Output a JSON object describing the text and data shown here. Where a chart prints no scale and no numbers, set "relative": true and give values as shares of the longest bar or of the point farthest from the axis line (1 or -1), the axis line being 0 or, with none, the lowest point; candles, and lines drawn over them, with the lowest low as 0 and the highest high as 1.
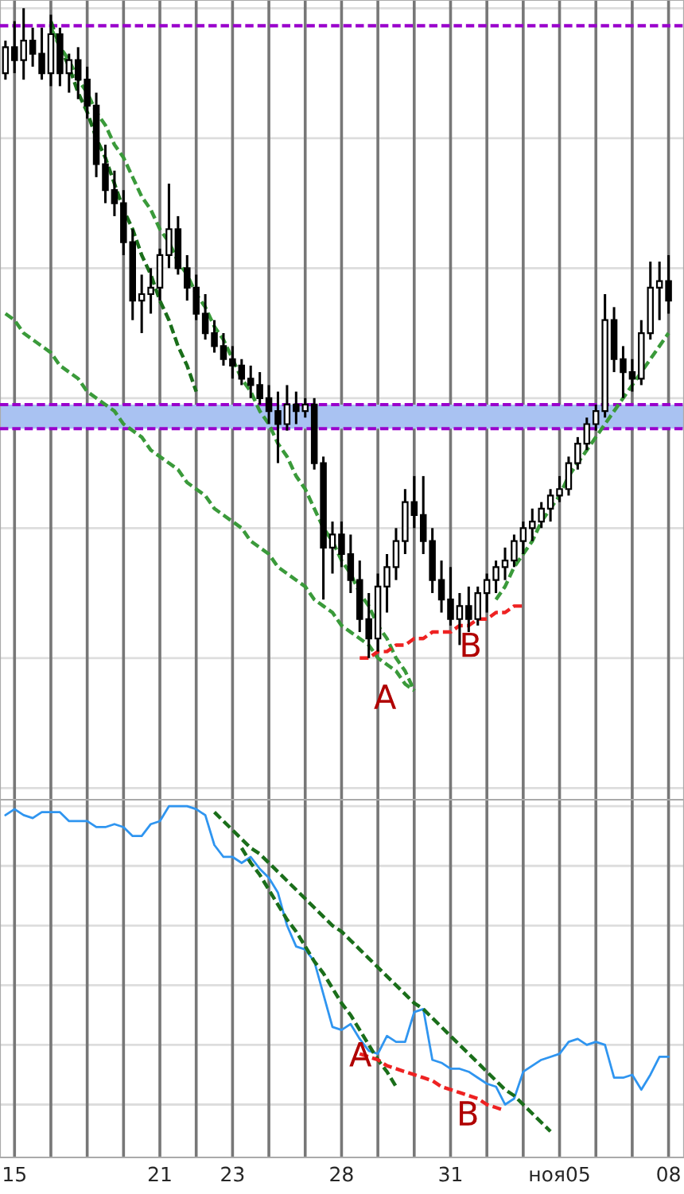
{
  "chart_data": [
    {
      "type": "candlestick",
      "relative": true,
      "color": "#000000",
      "categories": [
        null,
        null,
        null,
        null,
        null,
        null,
        null,
        null,
        null,
        null,
        null,
        null,
        null,
        null,
        null,
        null,
        null,
        null,
        null,
        null,
        null,
        null,
        null,
        null,
        null,
        null,
        null,
        null,
        null,
        null,
        null,
        null,
        null,
        null,
        null,
        null,
        null,
        null,
        null,
        null,
        null,
        null,
        null,
        null,
        null,
        null,
        null,
        null,
        null,
        null,
        null,
        null,
        null,
        null,
        null,
        null,
        null,
        null,
        null,
        null,
        null,
        null,
        null,
        null,
        null,
        null,
        null,
        null,
        null,
        null,
        null,
        null,
        null,
        null
      ],
      "ohlc": [
        [
          0.9,
          0.95,
          0.89,
          0.94
        ],
        [
          0.94,
          0.98,
          0.9,
          0.92
        ],
        [
          0.92,
          1.0,
          0.89,
          0.95
        ],
        [
          0.95,
          0.97,
          0.91,
          0.93
        ],
        [
          0.93,
          0.97,
          0.89,
          0.9
        ],
        [
          0.9,
          0.99,
          0.88,
          0.96
        ],
        [
          0.96,
          0.97,
          0.88,
          0.9
        ],
        [
          0.9,
          0.93,
          0.87,
          0.92
        ],
        [
          0.92,
          0.94,
          0.86,
          0.89
        ],
        [
          0.89,
          0.91,
          0.83,
          0.85
        ],
        [
          0.85,
          0.87,
          0.74,
          0.76
        ],
        [
          0.76,
          0.79,
          0.7,
          0.72
        ],
        [
          0.72,
          0.75,
          0.68,
          0.7
        ],
        [
          0.7,
          0.72,
          0.62,
          0.64
        ],
        [
          0.64,
          0.66,
          0.52,
          0.55
        ],
        [
          0.55,
          0.59,
          0.5,
          0.56
        ],
        [
          0.56,
          0.6,
          0.53,
          0.57
        ],
        [
          0.57,
          0.63,
          0.55,
          0.62
        ],
        [
          0.62,
          0.73,
          0.6,
          0.66
        ],
        [
          0.66,
          0.68,
          0.59,
          0.6
        ],
        [
          0.6,
          0.62,
          0.55,
          0.57
        ],
        [
          0.57,
          0.59,
          0.52,
          0.53
        ],
        [
          0.53,
          0.56,
          0.49,
          0.5
        ],
        [
          0.5,
          0.52,
          0.47,
          0.48
        ],
        [
          0.48,
          0.5,
          0.45,
          0.46
        ],
        [
          0.46,
          0.48,
          0.43,
          0.45
        ],
        [
          0.45,
          0.46,
          0.42,
          0.43
        ],
        [
          0.43,
          0.45,
          0.4,
          0.42
        ],
        [
          0.42,
          0.44,
          0.39,
          0.4
        ],
        [
          0.4,
          0.42,
          0.36,
          0.38
        ],
        [
          0.38,
          0.41,
          0.3,
          0.36
        ],
        [
          0.36,
          0.42,
          0.35,
          0.39
        ],
        [
          0.39,
          0.41,
          0.36,
          0.38
        ],
        [
          0.38,
          0.4,
          0.37,
          0.39
        ],
        [
          0.39,
          0.4,
          0.29,
          0.3
        ],
        [
          0.3,
          0.31,
          0.09,
          0.17
        ],
        [
          0.17,
          0.21,
          0.13,
          0.19
        ],
        [
          0.19,
          0.21,
          0.14,
          0.16
        ],
        [
          0.16,
          0.19,
          0.1,
          0.12
        ],
        [
          0.12,
          0.15,
          0.04,
          0.06
        ],
        [
          0.06,
          0.1,
          0.0,
          0.03
        ],
        [
          0.03,
          0.13,
          0.01,
          0.11
        ],
        [
          0.11,
          0.16,
          0.07,
          0.14
        ],
        [
          0.14,
          0.2,
          0.12,
          0.18
        ],
        [
          0.18,
          0.26,
          0.16,
          0.24
        ],
        [
          0.24,
          0.28,
          0.2,
          0.22
        ],
        [
          0.22,
          0.28,
          0.16,
          0.18
        ],
        [
          0.18,
          0.2,
          0.1,
          0.12
        ],
        [
          0.12,
          0.15,
          0.07,
          0.09
        ],
        [
          0.09,
          0.14,
          0.05,
          0.06
        ],
        [
          0.06,
          0.1,
          0.02,
          0.08
        ],
        [
          0.08,
          0.11,
          0.04,
          0.06
        ],
        [
          0.06,
          0.11,
          0.05,
          0.1
        ],
        [
          0.1,
          0.13,
          0.07,
          0.12
        ],
        [
          0.12,
          0.15,
          0.1,
          0.14
        ],
        [
          0.14,
          0.17,
          0.12,
          0.15
        ],
        [
          0.15,
          0.19,
          0.14,
          0.18
        ],
        [
          0.18,
          0.21,
          0.16,
          0.2
        ],
        [
          0.2,
          0.23,
          0.18,
          0.21
        ],
        [
          0.21,
          0.24,
          0.2,
          0.23
        ],
        [
          0.23,
          0.26,
          0.21,
          0.25
        ],
        [
          0.25,
          0.28,
          0.24,
          0.26
        ],
        [
          0.26,
          0.31,
          0.25,
          0.3
        ],
        [
          0.3,
          0.34,
          0.29,
          0.33
        ],
        [
          0.33,
          0.37,
          0.32,
          0.36
        ],
        [
          0.36,
          0.39,
          0.35,
          0.38
        ],
        [
          0.38,
          0.56,
          0.37,
          0.52
        ],
        [
          0.52,
          0.54,
          0.44,
          0.46
        ],
        [
          0.46,
          0.48,
          0.4,
          0.44
        ],
        [
          0.44,
          0.46,
          0.41,
          0.43
        ],
        [
          0.43,
          0.52,
          0.42,
          0.5
        ],
        [
          0.5,
          0.61,
          0.49,
          0.57
        ],
        [
          0.57,
          0.61,
          0.52,
          0.58
        ],
        [
          0.58,
          0.62,
          0.53,
          0.55
        ]
      ],
      "series": [
        {
          "type": "line",
          "color": "#1a6e1a",
          "line_style": "dashed",
          "values": [
            null,
            null,
            null,
            null,
            null,
            0.98,
            0.94,
            0.91,
            0.87,
            0.84,
            0.8,
            0.77,
            0.73,
            0.69,
            0.66,
            0.62,
            0.59,
            0.55,
            0.52,
            0.48,
            0.45,
            0.41,
            null,
            null,
            null,
            null,
            null,
            null,
            null,
            null,
            null,
            null,
            null,
            null,
            null,
            null,
            null,
            null,
            null,
            null,
            null,
            null,
            null,
            null,
            null,
            null,
            null,
            null,
            null,
            null,
            null,
            null,
            null,
            null,
            null,
            null,
            null,
            null,
            null,
            null,
            null,
            null,
            null,
            null,
            null,
            null,
            null,
            null,
            null,
            null,
            null,
            null,
            null,
            null
          ]
        },
        {
          "type": "line",
          "color": "#3a9a3a",
          "line_style": "dashed",
          "values": [
            null,
            null,
            null,
            null,
            null,
            0.97,
            0.94,
            0.92,
            0.89,
            0.87,
            0.84,
            0.82,
            0.79,
            0.77,
            0.74,
            0.71,
            0.69,
            0.66,
            0.64,
            0.61,
            0.59,
            0.56,
            0.54,
            0.51,
            0.49,
            0.46,
            0.43,
            0.41,
            0.38,
            0.36,
            0.33,
            0.31,
            0.28,
            0.26,
            0.23,
            0.2,
            0.18,
            0.15,
            0.13,
            0.1,
            0.08,
            0.05,
            0.03,
            0.0,
            -0.02,
            -0.05,
            null,
            null,
            null,
            null,
            null,
            null,
            null,
            null,
            null,
            null,
            null,
            null,
            null,
            null,
            null,
            null,
            null,
            null,
            null,
            null,
            null,
            null,
            null,
            null,
            null,
            null,
            null,
            null
          ]
        },
        {
          "type": "line",
          "color": "#3a9a3a",
          "line_style": "dashed",
          "values": [
            0.53,
            0.52,
            0.5,
            0.49,
            0.48,
            0.47,
            0.45,
            0.44,
            0.43,
            0.41,
            0.4,
            0.39,
            0.38,
            0.36,
            0.35,
            0.34,
            0.32,
            0.31,
            0.3,
            0.29,
            0.27,
            0.26,
            0.25,
            0.23,
            0.22,
            0.21,
            0.2,
            0.18,
            0.17,
            0.16,
            0.14,
            0.13,
            0.12,
            0.11,
            0.09,
            0.08,
            0.07,
            0.05,
            0.04,
            0.03,
            0.02,
            0.0,
            -0.01,
            -0.02,
            -0.04,
            -0.05,
            null,
            null,
            null,
            null,
            null,
            null,
            null,
            null,
            null,
            null,
            null,
            null,
            null,
            null,
            null,
            null,
            null,
            null,
            null,
            null,
            null,
            null,
            null,
            null,
            null,
            null,
            null,
            null
          ]
        },
        {
          "type": "line",
          "color": "#3a9a3a",
          "line_style": "dashed",
          "values": [
            null,
            null,
            null,
            null,
            null,
            null,
            null,
            null,
            null,
            null,
            null,
            null,
            null,
            null,
            null,
            null,
            null,
            null,
            null,
            null,
            null,
            null,
            null,
            null,
            null,
            null,
            null,
            null,
            null,
            null,
            null,
            null,
            null,
            null,
            null,
            null,
            null,
            null,
            null,
            null,
            null,
            null,
            null,
            null,
            null,
            null,
            null,
            null,
            null,
            null,
            null,
            null,
            null,
            null,
            0.09,
            0.11,
            0.14,
            0.16,
            0.18,
            0.21,
            0.23,
            0.25,
            0.28,
            0.3,
            0.32,
            0.34,
            0.36,
            0.38,
            0.4,
            0.42,
            0.44,
            0.46,
            0.48,
            0.5
          ]
        },
        {
          "type": "line",
          "color": "#ee2222",
          "line_style": "dashed",
          "values": [
            null,
            null,
            null,
            null,
            null,
            null,
            null,
            null,
            null,
            null,
            null,
            null,
            null,
            null,
            null,
            null,
            null,
            null,
            null,
            null,
            null,
            null,
            null,
            null,
            null,
            null,
            null,
            null,
            null,
            null,
            null,
            null,
            null,
            null,
            null,
            null,
            null,
            null,
            null,
            0.0,
            0.0,
            0.01,
            0.01,
            0.02,
            0.02,
            0.03,
            0.03,
            0.04,
            0.04,
            0.04,
            0.05,
            0.05,
            0.06,
            0.06,
            0.07,
            0.07,
            0.08,
            0.08,
            null,
            null,
            null,
            null,
            null,
            null,
            null,
            null,
            null,
            null,
            null,
            null,
            null,
            null,
            null,
            null
          ]
        }
      ],
      "ref_lines": [
        {
          "axis": "y",
          "value": 0.973,
          "color": "#9900cc",
          "line_style": "dashed"
        },
        {
          "axis": "y",
          "value": 0.39,
          "color": "#9900cc",
          "line_style": "dashed"
        },
        {
          "axis": "y",
          "value": 0.353,
          "color": "#9900cc",
          "line_style": "dashed"
        }
      ],
      "bands": [
        {
          "axis": "y",
          "from": 0.353,
          "to": 0.39,
          "color": "#a9c2f2"
        }
      ],
      "annotations": [
        "A",
        "B"
      ],
      "tick_labels": false,
      "grid": true
    },
    {
      "type": "line",
      "relative": true,
      "categories": [
        null,
        "15",
        null,
        null,
        null,
        null,
        null,
        null,
        null,
        null,
        null,
        null,
        null,
        null,
        null,
        null,
        null,
        "21",
        null,
        null,
        null,
        null,
        null,
        null,
        null,
        "23",
        null,
        null,
        null,
        null,
        null,
        null,
        null,
        null,
        null,
        null,
        null,
        "28",
        null,
        null,
        null,
        null,
        null,
        null,
        null,
        null,
        null,
        null,
        null,
        "31",
        null,
        null,
        null,
        null,
        null,
        null,
        null,
        null,
        null,
        null,
        null,
        "ноя05",
        null,
        null,
        null,
        null,
        null,
        null,
        null,
        null,
        null,
        null,
        null,
        "08"
      ],
      "series": [
        {
          "type": "line",
          "color": "#2f95f0",
          "line_style": "solid",
          "values": [
            0.97,
            0.99,
            0.97,
            0.96,
            0.98,
            0.98,
            0.98,
            0.95,
            0.95,
            0.95,
            0.93,
            0.93,
            0.94,
            0.93,
            0.9,
            0.9,
            0.94,
            0.95,
            1.0,
            1.0,
            1.0,
            0.99,
            0.97,
            0.87,
            0.83,
            0.83,
            0.81,
            0.83,
            0.79,
            0.76,
            0.71,
            0.6,
            0.53,
            0.52,
            0.48,
            0.37,
            0.26,
            0.25,
            0.27,
            0.22,
            0.18,
            0.17,
            0.23,
            0.21,
            0.21,
            0.31,
            0.32,
            0.15,
            0.14,
            0.12,
            0.12,
            0.11,
            0.09,
            0.07,
            0.06,
            0.0,
            0.02,
            0.11,
            0.13,
            0.15,
            0.16,
            0.17,
            0.21,
            0.22,
            0.2,
            0.21,
            0.2,
            0.09,
            0.09,
            0.1,
            0.05,
            0.1,
            0.16,
            0.16
          ]
        },
        {
          "type": "line",
          "color": "#1a6e1a",
          "line_style": "dashed",
          "values": [
            null,
            null,
            null,
            null,
            null,
            null,
            null,
            null,
            null,
            null,
            null,
            null,
            null,
            null,
            null,
            null,
            null,
            null,
            null,
            null,
            null,
            null,
            null,
            0.98,
            0.95,
            0.92,
            0.89,
            0.86,
            0.84,
            0.81,
            0.78,
            0.75,
            0.72,
            0.69,
            0.66,
            0.63,
            0.6,
            0.58,
            0.55,
            0.52,
            0.49,
            0.46,
            0.43,
            0.4,
            0.37,
            0.34,
            0.32,
            0.29,
            0.26,
            0.23,
            0.2,
            0.17,
            0.14,
            0.11,
            0.08,
            0.05,
            0.03,
            0.0,
            -0.03,
            -0.06,
            -0.09,
            null,
            null,
            null,
            null,
            null,
            null,
            null,
            null,
            null,
            null,
            null,
            null,
            null
          ]
        },
        {
          "type": "line",
          "color": "#1a6e1a",
          "line_style": "dashed",
          "values": [
            null,
            null,
            null,
            null,
            null,
            null,
            null,
            null,
            null,
            null,
            null,
            null,
            null,
            null,
            null,
            null,
            null,
            null,
            null,
            null,
            null,
            null,
            null,
            null,
            null,
            null,
            0.86,
            0.81,
            0.77,
            0.72,
            0.67,
            0.62,
            0.58,
            0.53,
            0.48,
            0.44,
            0.39,
            0.34,
            0.3,
            0.25,
            0.2,
            0.15,
            0.11,
            0.06,
            null,
            null,
            null,
            null,
            null,
            null,
            null,
            null,
            null,
            null,
            null,
            null,
            null,
            null,
            null,
            null,
            null,
            null,
            null,
            null,
            null,
            null,
            null,
            null,
            null,
            null,
            null,
            null,
            null,
            null
          ]
        },
        {
          "type": "line",
          "color": "#ee2222",
          "line_style": "dashed",
          "values": [
            null,
            null,
            null,
            null,
            null,
            null,
            null,
            null,
            null,
            null,
            null,
            null,
            null,
            null,
            null,
            null,
            null,
            null,
            null,
            null,
            null,
            null,
            null,
            null,
            null,
            null,
            null,
            null,
            null,
            null,
            null,
            null,
            null,
            null,
            null,
            null,
            null,
            null,
            null,
            0.17,
            0.16,
            0.15,
            0.13,
            0.12,
            0.11,
            0.1,
            0.09,
            0.08,
            0.06,
            0.05,
            0.04,
            0.03,
            0.02,
            0.0,
            -0.01,
            -0.02,
            null,
            null,
            null,
            null,
            null,
            null,
            null,
            null,
            null,
            null,
            null,
            null,
            null,
            null,
            null,
            null,
            null,
            null
          ]
        }
      ],
      "annotations": [
        "A",
        "B"
      ],
      "tick_labels": "x",
      "grid": true
    }
  ]
}
